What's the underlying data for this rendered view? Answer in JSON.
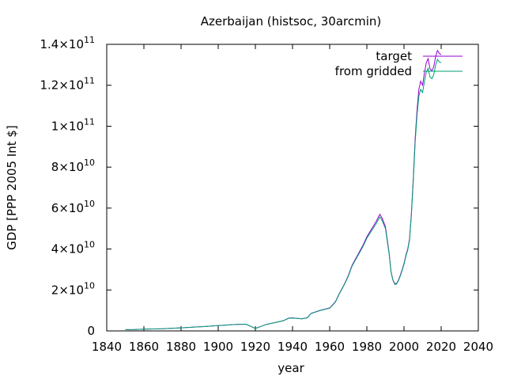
{
  "chart_data": {
    "type": "line",
    "title": "Azerbaijan (histsoc, 30arcmin)",
    "xlabel": "year",
    "ylabel": "GDP [PPP 2005 Int $]",
    "xlim": [
      1840,
      2040
    ],
    "ylim": [
      0,
      140000000000
    ],
    "x_ticks": [
      1840,
      1860,
      1880,
      1900,
      1920,
      1940,
      1960,
      1980,
      2000,
      2020,
      2040
    ],
    "y_ticks": [
      {
        "value": 0,
        "mant": "0",
        "exp": ""
      },
      {
        "value": 20000000000,
        "mant": "2×10",
        "exp": "10"
      },
      {
        "value": 40000000000,
        "mant": "4×10",
        "exp": "10"
      },
      {
        "value": 60000000000,
        "mant": "6×10",
        "exp": "10"
      },
      {
        "value": 80000000000,
        "mant": "8×10",
        "exp": "10"
      },
      {
        "value": 100000000000,
        "mant": "1×10",
        "exp": "11"
      },
      {
        "value": 120000000000,
        "mant": "1.2×10",
        "exp": "11"
      },
      {
        "value": 140000000000,
        "mant": "1.4×10",
        "exp": "11"
      }
    ],
    "grid": false,
    "legend_position": "top-right",
    "series": [
      {
        "name": "target",
        "color": "#9400d3",
        "x": [
          1850,
          1855,
          1860,
          1870,
          1880,
          1890,
          1900,
          1910,
          1915,
          1920,
          1923,
          1926,
          1930,
          1935,
          1938,
          1940,
          1945,
          1948,
          1950,
          1955,
          1960,
          1963,
          1965,
          1968,
          1970,
          1972,
          1975,
          1978,
          1980,
          1983,
          1985,
          1987,
          1988,
          1990,
          1992,
          1993,
          1994,
          1995,
          1996,
          1997,
          1998,
          1999,
          2000,
          2001,
          2002,
          2003,
          2004,
          2005,
          2006,
          2007,
          2008,
          2009,
          2010,
          2011,
          2012,
          2013,
          2014,
          2015,
          2016,
          2017,
          2018,
          2019,
          2020
        ],
        "values": [
          600000000,
          700000000,
          900000000,
          1100000000,
          1500000000,
          2000000000,
          2600000000,
          3200000000,
          3300000000,
          1200000000,
          2200000000,
          3200000000,
          4000000000,
          5000000000,
          6300000000,
          6400000000,
          5900000000,
          6500000000,
          8600000000,
          10100000000,
          11200000000,
          14200000000,
          18000000000,
          23000000000,
          27000000000,
          32000000000,
          37000000000,
          42000000000,
          46000000000,
          50500000000,
          53500000000,
          57000000000,
          55500000000,
          51000000000,
          38000000000,
          29000000000,
          25000000000,
          23000000000,
          23200000000,
          24800000000,
          27200000000,
          30000000000,
          33000000000,
          37000000000,
          40000000000,
          45000000000,
          58000000000,
          75000000000,
          94000000000,
          108000000000,
          118000000000,
          122000000000,
          120000000000,
          126000000000,
          131000000000,
          133000000000,
          128000000000,
          127000000000,
          129000000000,
          134000000000,
          137000000000,
          135500000000,
          135000000000
        ]
      },
      {
        "name": "from gridded",
        "color": "#009e73",
        "x": [
          1850,
          1855,
          1860,
          1870,
          1880,
          1890,
          1900,
          1910,
          1915,
          1920,
          1923,
          1926,
          1930,
          1935,
          1938,
          1940,
          1945,
          1948,
          1950,
          1955,
          1960,
          1963,
          1965,
          1968,
          1970,
          1972,
          1975,
          1978,
          1980,
          1983,
          1985,
          1987,
          1988,
          1990,
          1992,
          1993,
          1994,
          1995,
          1996,
          1997,
          1998,
          1999,
          2000,
          2001,
          2002,
          2003,
          2004,
          2005,
          2006,
          2007,
          2008,
          2009,
          2010,
          2011,
          2012,
          2013,
          2014,
          2015,
          2016,
          2017,
          2018,
          2019,
          2020
        ],
        "values": [
          600000000,
          700000000,
          900000000,
          1100000000,
          1500000000,
          2000000000,
          2600000000,
          3200000000,
          3300000000,
          1200000000,
          2200000000,
          3200000000,
          4000000000,
          5000000000,
          6200000000,
          6300000000,
          5900000000,
          6400000000,
          8500000000,
          10000000000,
          11100000000,
          14000000000,
          17800000000,
          22800000000,
          26700000000,
          31600000000,
          36500000000,
          41400000000,
          45300000000,
          49600000000,
          52400000000,
          55700000000,
          54300000000,
          50000000000,
          37400000000,
          28700000000,
          24800000000,
          22700000000,
          22900000000,
          24500000000,
          26800000000,
          29600000000,
          32600000000,
          36500000000,
          39500000000,
          44400000000,
          57000000000,
          73500000000,
          92000000000,
          105500000000,
          114800000000,
          118000000000,
          116500000000,
          121800000000,
          126500000000,
          128300000000,
          124000000000,
          123200000000,
          125200000000,
          129800000000,
          132600000000,
          131400000000,
          131000000000
        ]
      }
    ]
  }
}
